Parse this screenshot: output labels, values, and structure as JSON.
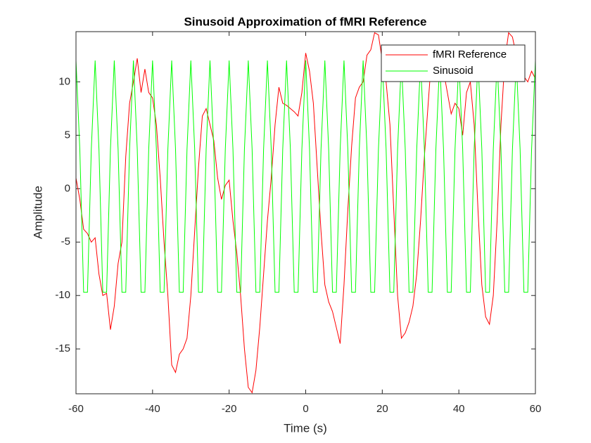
{
  "chart_data": {
    "type": "line",
    "title": "Sinusoid Approximation of fMRI Reference",
    "x_label": "Time (s)",
    "y_label": "Amplitude",
    "x": [
      -60,
      -59,
      -58,
      -57,
      -56,
      -55,
      -54,
      -53,
      -52,
      -51,
      -50,
      -49,
      -48,
      -47,
      -46,
      -45,
      -44,
      -43,
      -42,
      -41,
      -40,
      -39,
      -38,
      -37,
      -36,
      -35,
      -34,
      -33,
      -32,
      -31,
      -30,
      -29,
      -28,
      -27,
      -26,
      -25,
      -24,
      -23,
      -22,
      -21,
      -20,
      -19,
      -18,
      -17,
      -16,
      -15,
      -14,
      -13,
      -12,
      -11,
      -10,
      -9,
      -8,
      -7,
      -6,
      -5,
      -4,
      -3,
      -2,
      -1,
      0,
      1,
      2,
      3,
      4,
      5,
      6,
      7,
      8,
      9,
      10,
      11,
      12,
      13,
      14,
      15,
      16,
      17,
      18,
      19,
      20,
      21,
      22,
      23,
      24,
      25,
      26,
      27,
      28,
      29,
      30,
      31,
      32,
      33,
      34,
      35,
      36,
      37,
      38,
      39,
      40,
      41,
      42,
      43,
      44,
      45,
      46,
      47,
      48,
      49,
      50,
      51,
      52,
      53,
      54,
      55,
      56,
      57,
      58,
      59,
      60
    ],
    "series": [
      {
        "name": "fMRI Reference",
        "color": "#ff0000",
        "values": [
          1,
          -1,
          -3.8,
          -4.2,
          -5,
          -4.6,
          -8,
          -10,
          -9.8,
          -13.2,
          -11,
          -7,
          -5,
          3,
          8,
          10,
          12.2,
          9,
          11.2,
          9,
          8.5,
          6,
          1,
          -5,
          -10,
          -16.5,
          -17.2,
          -15.5,
          -15,
          -14,
          -10,
          -4,
          2,
          6.8,
          7.5,
          6,
          4.5,
          1,
          -1,
          0.3,
          0.8,
          -3,
          -6,
          -10,
          -15,
          -18.6,
          -19.1,
          -17,
          -13,
          -8,
          -3,
          1,
          6,
          9.5,
          8,
          7.8,
          7.5,
          7.2,
          6.8,
          9,
          12.7,
          11,
          8,
          2,
          -4,
          -9,
          -10.6,
          -11.5,
          -13,
          -14.5,
          -9,
          -2,
          4,
          8.5,
          9.5,
          10,
          12.5,
          13,
          14.6,
          14.4,
          12,
          10,
          6,
          -2,
          -10,
          -14,
          -13.5,
          -12.5,
          -11,
          -8,
          -3,
          3,
          8,
          13,
          13.2,
          13,
          11,
          9,
          7,
          8,
          7.5,
          5,
          9,
          10,
          6,
          -2,
          -9,
          -12,
          -12.7,
          -10,
          -3,
          6,
          12,
          14.6,
          14.2,
          12.5,
          11.5,
          10.5,
          10,
          11,
          10.3
        ]
      },
      {
        "name": "Sinusoid",
        "color": "#00ff00",
        "values": [
          12,
          3.7,
          -9.7,
          -9.7,
          3.7,
          12,
          3.7,
          -9.7,
          -9.7,
          3.7,
          12,
          3.7,
          -9.7,
          -9.7,
          3.7,
          12,
          3.7,
          -9.7,
          -9.7,
          3.7,
          12,
          3.7,
          -9.7,
          -9.7,
          3.7,
          12,
          3.7,
          -9.7,
          -9.7,
          3.7,
          12,
          3.7,
          -9.7,
          -9.7,
          3.7,
          12,
          3.7,
          -9.7,
          -9.7,
          3.7,
          12,
          3.7,
          -9.7,
          -9.7,
          3.7,
          12,
          3.7,
          -9.7,
          -9.7,
          3.7,
          12,
          3.7,
          -9.7,
          -9.7,
          3.7,
          12,
          3.7,
          -9.7,
          -9.7,
          3.7,
          12,
          3.7,
          -9.7,
          -9.7,
          3.7,
          12,
          3.7,
          -9.7,
          -9.7,
          3.7,
          12,
          3.7,
          -9.7,
          -9.7,
          3.7,
          12,
          3.7,
          -9.7,
          -9.7,
          3.7,
          12,
          3.7,
          -9.7,
          -9.7,
          3.7,
          12,
          3.7,
          -9.7,
          -9.7,
          3.7,
          12,
          3.7,
          -9.7,
          -9.7,
          3.7,
          12,
          3.7,
          -9.7,
          -9.7,
          3.7,
          12,
          3.7,
          -9.7,
          -9.7,
          3.7,
          12,
          3.7,
          -9.7,
          -9.7,
          3.7,
          12,
          3.7,
          -9.7,
          -9.7,
          3.7,
          12,
          3.7,
          -9.7,
          -9.7,
          3.7,
          12
        ]
      }
    ],
    "xlim": [
      -60,
      60
    ],
    "xticks": [
      -60,
      -40,
      -20,
      0,
      20,
      40,
      60
    ],
    "ylim": [
      -19.2,
      14.7
    ],
    "yticks": [
      -15,
      -10,
      -5,
      0,
      5,
      10
    ],
    "legend": "upper right",
    "grid": false
  }
}
